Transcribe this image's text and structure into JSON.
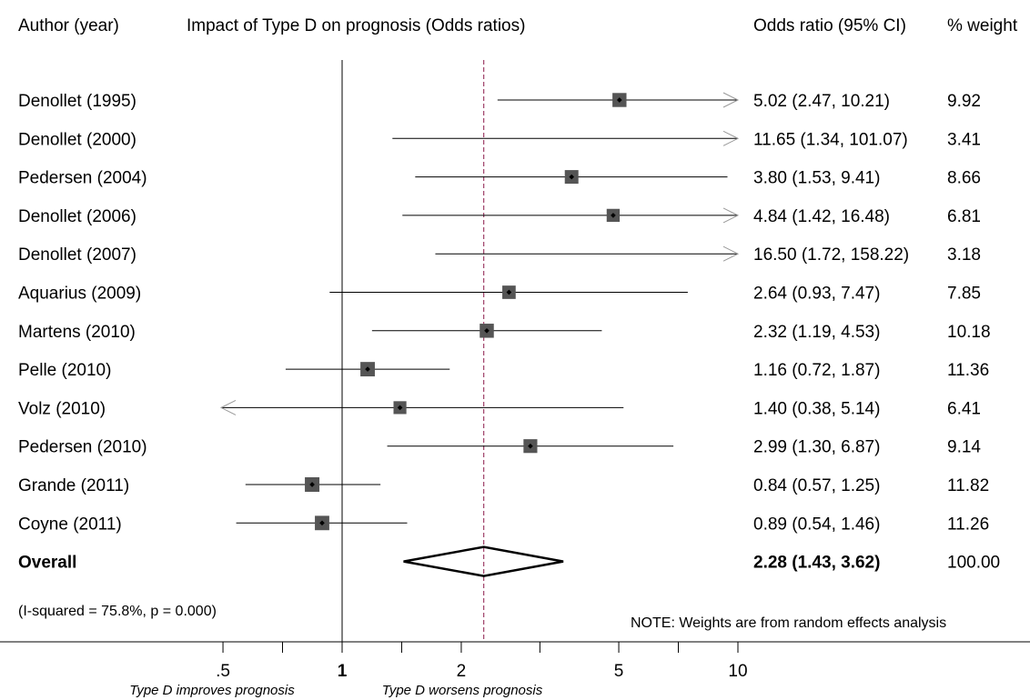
{
  "headers": {
    "author": "Author (year)",
    "plot_title": "Impact of Type D on prognosis (Odds ratios)",
    "or_ci": "Odds ratio (95% CI)",
    "weight": "% weight"
  },
  "heterogeneity_note": "(I-squared = 75.8%, p = 0.000)",
  "weights_note": "NOTE: Weights are from random effects analysis",
  "chart_data": {
    "type": "forest",
    "x_scale": "log",
    "xlim": [
      0.4,
      10
    ],
    "ticks": [
      {
        "value": 0.5,
        "label": ".5"
      },
      {
        "value": 0.707,
        "label": ""
      },
      {
        "value": 1,
        "label": "1"
      },
      {
        "value": 1.414,
        "label": ""
      },
      {
        "value": 2,
        "label": "2"
      },
      {
        "value": 3.16,
        "label": ""
      },
      {
        "value": 5,
        "label": "5"
      },
      {
        "value": 7.07,
        "label": ""
      },
      {
        "value": 10,
        "label": "10"
      }
    ],
    "null_line": 1,
    "pooled_line": 2.28,
    "left_caption": "Type D improves prognosis",
    "right_caption": "Type D worsens prognosis",
    "studies": [
      {
        "label": "Denollet (1995)",
        "or": 5.02,
        "lo": 2.47,
        "hi": 10.21,
        "or_text": "5.02 (2.47, 10.21)",
        "weight": 9.92,
        "weight_text": "9.92"
      },
      {
        "label": "Denollet (2000)",
        "or": 11.65,
        "lo": 1.34,
        "hi": 101.07,
        "or_text": "11.65 (1.34, 101.07)",
        "weight": 3.41,
        "weight_text": "3.41"
      },
      {
        "label": "Pedersen (2004)",
        "or": 3.8,
        "lo": 1.53,
        "hi": 9.41,
        "or_text": "3.80 (1.53, 9.41)",
        "weight": 8.66,
        "weight_text": "8.66"
      },
      {
        "label": "Denollet (2006)",
        "or": 4.84,
        "lo": 1.42,
        "hi": 16.48,
        "or_text": "4.84 (1.42, 16.48)",
        "weight": 6.81,
        "weight_text": "6.81"
      },
      {
        "label": "Denollet (2007)",
        "or": 16.5,
        "lo": 1.72,
        "hi": 158.22,
        "or_text": "16.50 (1.72, 158.22)",
        "weight": 3.18,
        "weight_text": "3.18"
      },
      {
        "label": "Aquarius (2009)",
        "or": 2.64,
        "lo": 0.93,
        "hi": 7.47,
        "or_text": "2.64 (0.93, 7.47)",
        "weight": 7.85,
        "weight_text": "7.85"
      },
      {
        "label": "Martens (2010)",
        "or": 2.32,
        "lo": 1.19,
        "hi": 4.53,
        "or_text": "2.32 (1.19, 4.53)",
        "weight": 10.18,
        "weight_text": "10.18"
      },
      {
        "label": "Pelle (2010)",
        "or": 1.16,
        "lo": 0.72,
        "hi": 1.87,
        "or_text": "1.16 (0.72, 1.87)",
        "weight": 11.36,
        "weight_text": "11.36"
      },
      {
        "label": "Volz (2010)",
        "or": 1.4,
        "lo": 0.38,
        "hi": 5.14,
        "or_text": "1.40 (0.38, 5.14)",
        "weight": 6.41,
        "weight_text": "6.41"
      },
      {
        "label": "Pedersen (2010)",
        "or": 2.99,
        "lo": 1.3,
        "hi": 6.87,
        "or_text": "2.99 (1.30, 6.87)",
        "weight": 9.14,
        "weight_text": "9.14"
      },
      {
        "label": "Grande (2011)",
        "or": 0.84,
        "lo": 0.57,
        "hi": 1.25,
        "or_text": "0.84 (0.57, 1.25)",
        "weight": 11.82,
        "weight_text": "11.82"
      },
      {
        "label": "Coyne (2011)",
        "or": 0.89,
        "lo": 0.54,
        "hi": 1.46,
        "or_text": "0.89 (0.54, 1.46)",
        "weight": 11.26,
        "weight_text": "11.26"
      }
    ],
    "overall": {
      "label": "Overall",
      "or": 2.28,
      "lo": 1.43,
      "hi": 3.62,
      "or_text": "2.28 (1.43, 3.62)",
      "weight": 100.0,
      "weight_text": "100.00"
    }
  }
}
